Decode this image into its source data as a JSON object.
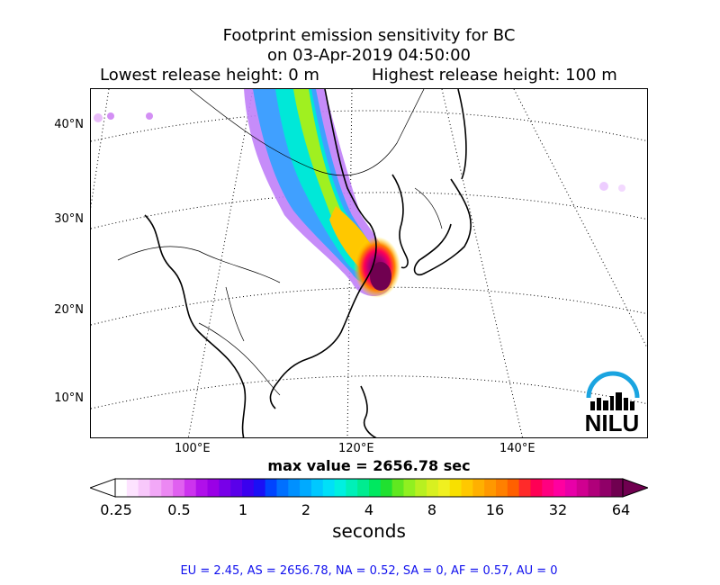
{
  "title": {
    "line1": "Footprint emission sensitivity for BC",
    "line2": "on 03-Apr-2019 04:50:00",
    "lowest_release": "Lowest release height: 0 m",
    "highest_release": "Highest release height: 100 m"
  },
  "map": {
    "lat_labels": [
      "40°N",
      "30°N",
      "20°N",
      "10°N"
    ],
    "lon_labels": [
      "100°E",
      "120°E",
      "140°E"
    ],
    "logo_text": "NILU",
    "logo_color": "#1aa4e0"
  },
  "max_value": "max value = 2656.78 sec",
  "colorbar": {
    "ticks": [
      "0.25",
      "0.5",
      "1",
      "2",
      "4",
      "8",
      "16",
      "32",
      "64"
    ],
    "label": "seconds",
    "colors": [
      "#ffffff",
      "#fde3ff",
      "#f8c8fb",
      "#f2a8f7",
      "#ec88f3",
      "#e060f0",
      "#cc33ee",
      "#b010ea",
      "#9a00e6",
      "#7800e8",
      "#5a00ea",
      "#3a00ee",
      "#1a10f5",
      "#0044ff",
      "#0070ff",
      "#0090ff",
      "#00aaff",
      "#00c8ff",
      "#00e0f8",
      "#00f0e0",
      "#00f0b8",
      "#00ec90",
      "#00e860",
      "#20e030",
      "#60e820",
      "#90f020",
      "#b8f020",
      "#d8f020",
      "#f0f020",
      "#f8e000",
      "#ffc800",
      "#ffb000",
      "#ff9800",
      "#ff8000",
      "#ff6000",
      "#ff2a2a",
      "#ff0055",
      "#ff0080",
      "#ff00a0",
      "#e800a8",
      "#d00090",
      "#b0007a",
      "#900068",
      "#700050"
    ]
  },
  "stats": "EU = 2.45,  AS = 2656.78,  NA = 0.52,  SA = 0,  AF = 0.57,  AU = 0"
}
